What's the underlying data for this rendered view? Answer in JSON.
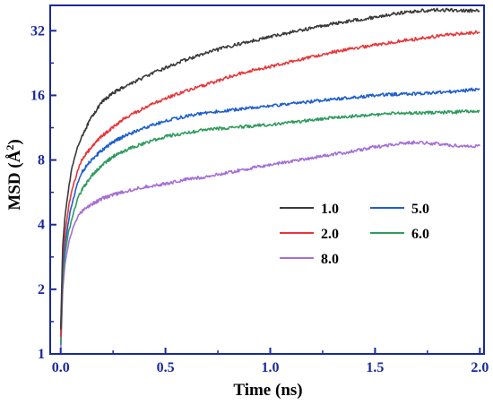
{
  "chart_data": {
    "type": "line",
    "xlabel": "Time (ns)",
    "ylabel": "MSD (Å²)",
    "ylabel_base": "MSD (Å",
    "ylabel_sup": "2",
    "ylabel_close": ")",
    "xlim": [
      -0.05,
      2.02
    ],
    "ylim": [
      1,
      42
    ],
    "yscale": "log2",
    "x_ticks": [
      0.0,
      0.5,
      1.0,
      1.5,
      2.0
    ],
    "x_tick_labels": [
      "0.0",
      "0.5",
      "1.0",
      "1.5",
      "2.0"
    ],
    "y_ticks": [
      1,
      2,
      4,
      8,
      16,
      32
    ],
    "y_tick_labels": [
      "1",
      "2",
      "4",
      "8",
      "16",
      "32"
    ],
    "grid": false,
    "legend_position": "right-middle",
    "x": [
      0.0,
      0.01,
      0.02,
      0.04,
      0.06,
      0.08,
      0.1,
      0.15,
      0.2,
      0.25,
      0.3,
      0.4,
      0.5,
      0.6,
      0.7,
      0.8,
      0.9,
      1.0,
      1.1,
      1.2,
      1.3,
      1.4,
      1.5,
      1.6,
      1.7,
      1.8,
      1.9,
      2.0
    ],
    "series": [
      {
        "name": "1.0",
        "color": "#3a3a3a",
        "values": [
          1.3,
          3.2,
          4.3,
          6.2,
          7.8,
          9.1,
          10.3,
          12.8,
          15.0,
          16.4,
          17.5,
          19.5,
          21.5,
          23.5,
          25.3,
          27.0,
          28.5,
          30.0,
          31.5,
          33.0,
          34.5,
          35.8,
          37.0,
          38.5,
          39.5,
          40.0,
          39.8,
          39.5
        ]
      },
      {
        "name": "2.0",
        "color": "#e8353a",
        "values": [
          1.2,
          2.8,
          3.6,
          5.0,
          6.1,
          7.1,
          8.0,
          9.3,
          10.4,
          11.4,
          12.4,
          14.0,
          15.5,
          16.8,
          18.0,
          19.5,
          20.8,
          21.8,
          23.0,
          24.2,
          25.5,
          26.5,
          27.5,
          28.5,
          29.3,
          30.2,
          31.0,
          31.5
        ]
      },
      {
        "name": "5.0",
        "color": "#1f5fcf",
        "values": [
          1.2,
          2.5,
          3.2,
          4.3,
          5.3,
          6.2,
          7.0,
          8.1,
          8.9,
          9.7,
          10.3,
          11.3,
          12.2,
          12.8,
          13.3,
          13.6,
          14.0,
          14.3,
          14.6,
          15.0,
          15.4,
          15.6,
          16.0,
          16.2,
          16.3,
          16.5,
          16.7,
          17.2
        ]
      },
      {
        "name": "6.0",
        "color": "#2e9b5e",
        "values": [
          1.1,
          2.2,
          2.9,
          3.8,
          4.5,
          5.2,
          5.8,
          6.8,
          7.6,
          8.3,
          8.8,
          9.6,
          10.3,
          10.7,
          11.1,
          11.3,
          11.5,
          11.7,
          12.0,
          12.3,
          12.6,
          12.8,
          13.0,
          13.2,
          13.3,
          13.3,
          13.4,
          13.6
        ]
      },
      {
        "name": "8.0",
        "color": "#a56fd6",
        "values": [
          1.0,
          2.0,
          2.6,
          3.4,
          3.9,
          4.3,
          4.6,
          5.0,
          5.3,
          5.5,
          5.7,
          6.0,
          6.2,
          6.5,
          6.7,
          7.0,
          7.3,
          7.6,
          7.9,
          8.2,
          8.5,
          8.8,
          9.2,
          9.5,
          9.7,
          9.5,
          9.3,
          9.3
        ]
      }
    ]
  }
}
